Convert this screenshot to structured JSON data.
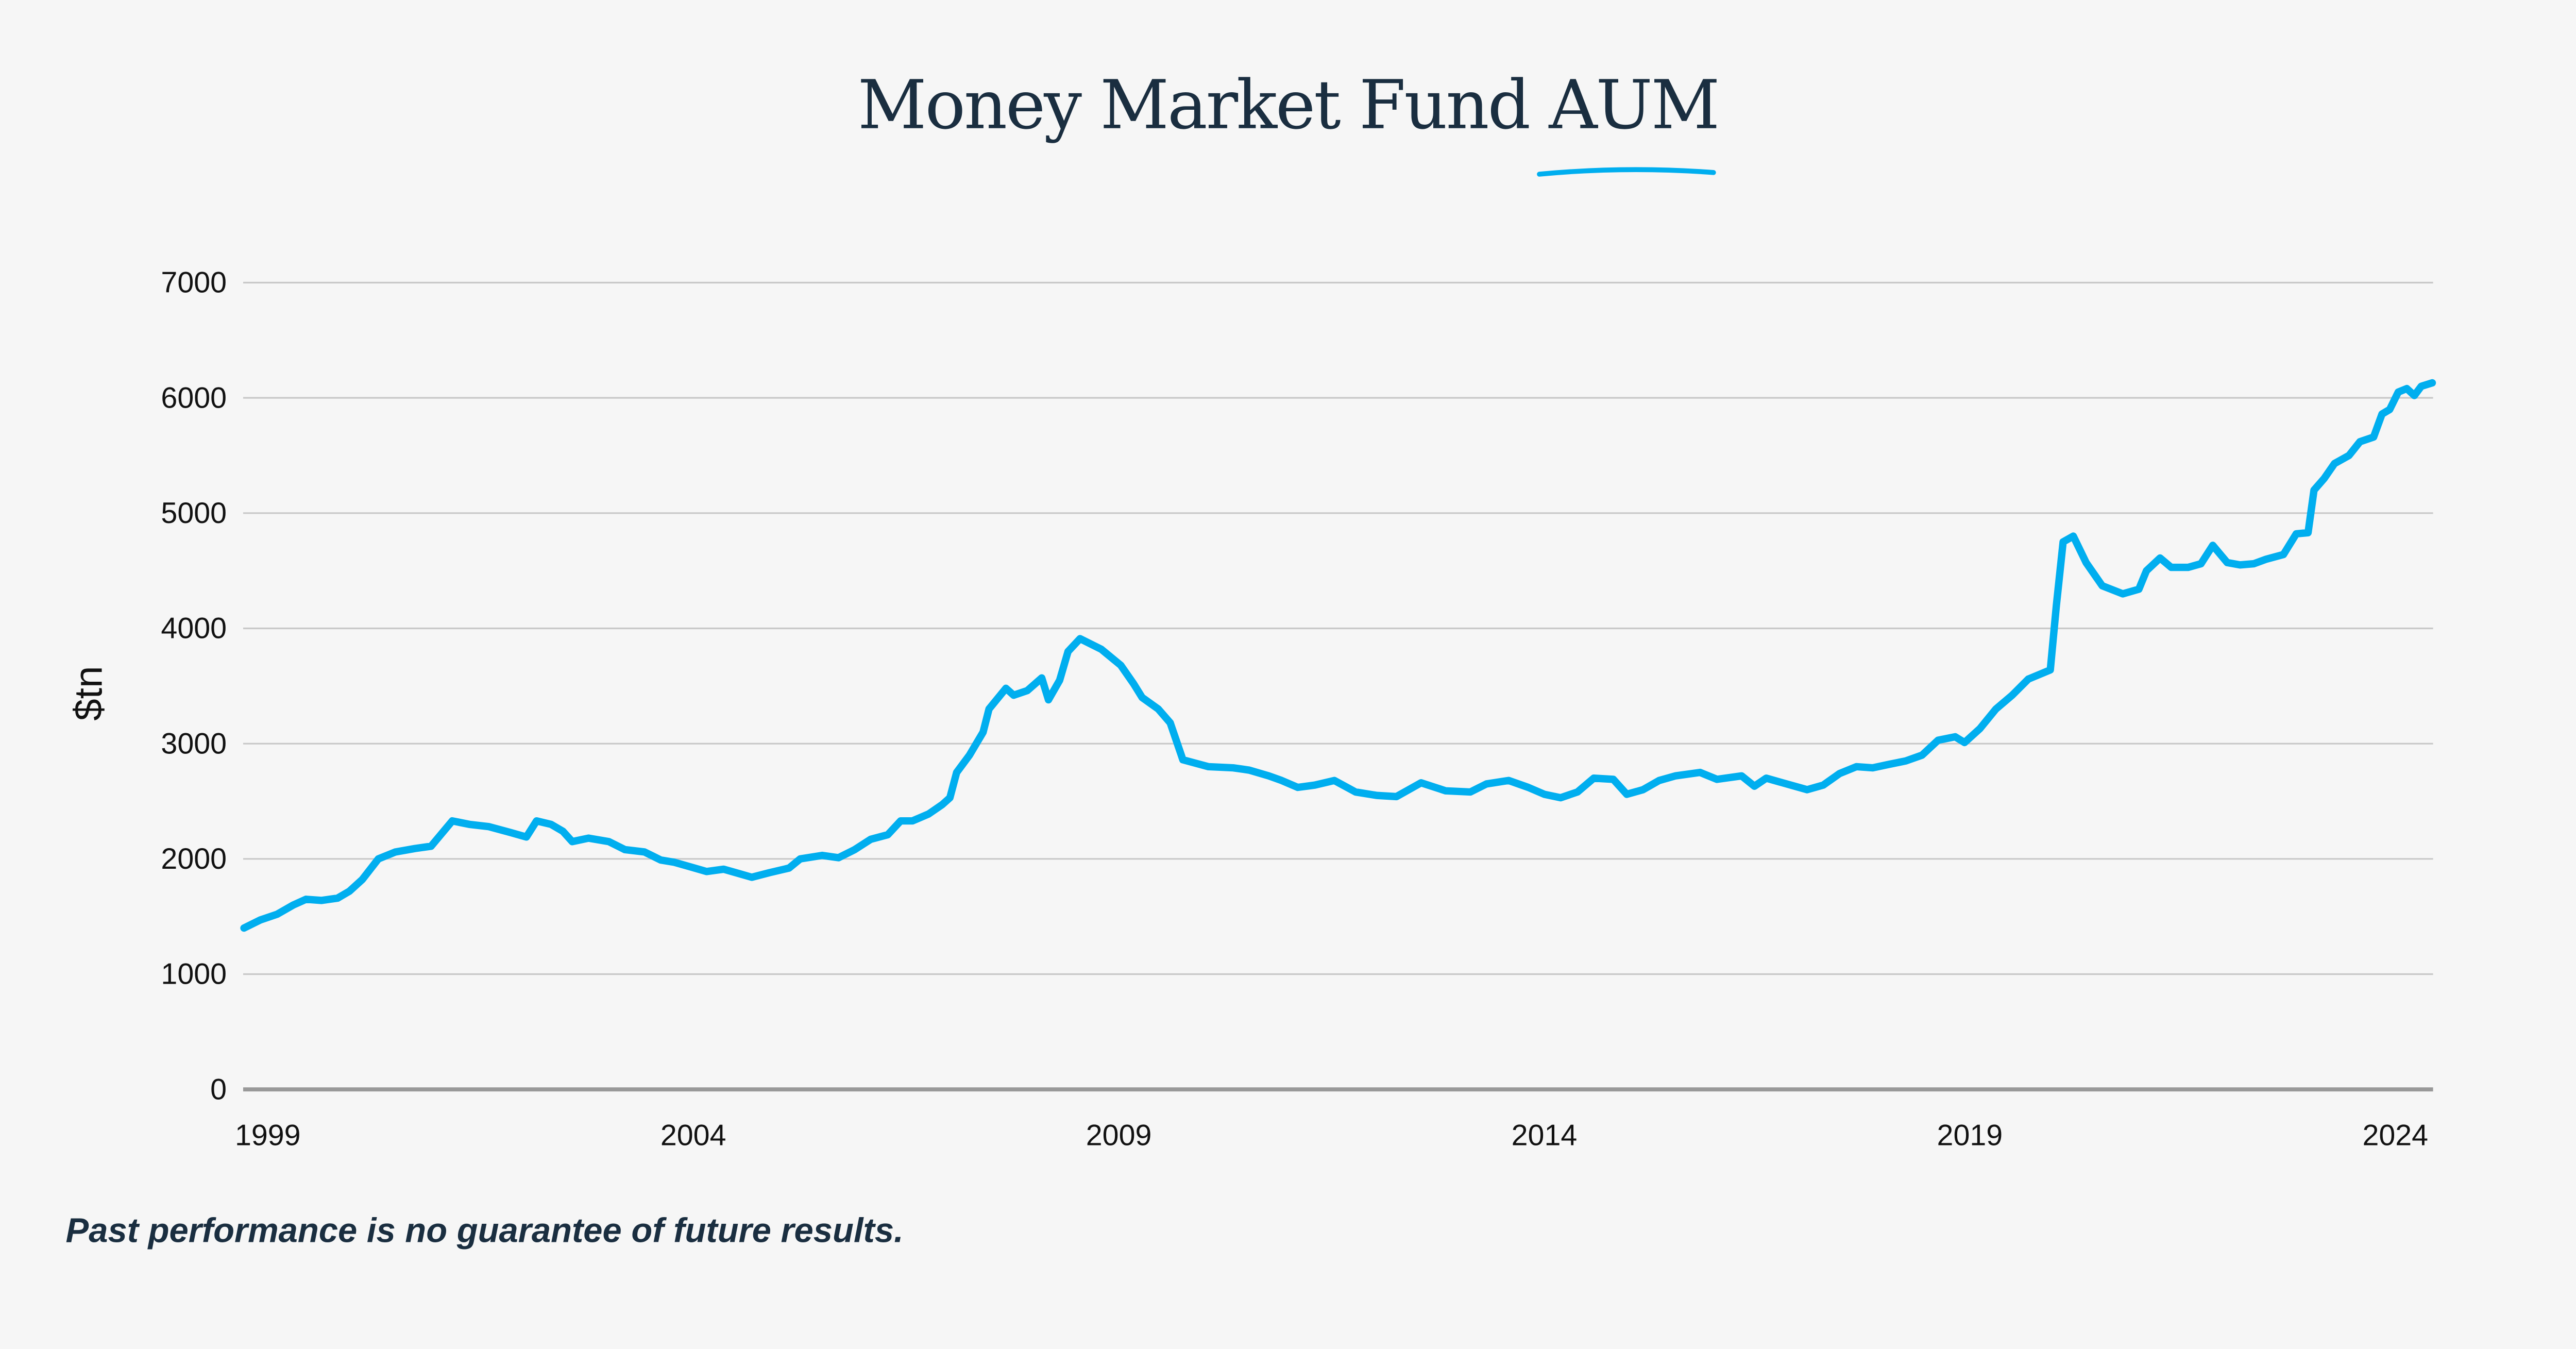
{
  "title": "Money Market Fund AUM",
  "footnote": "Past performance is no guarantee of future results.",
  "colors": {
    "line": "#00aeef",
    "title": "#1a2e40",
    "grid": "#c8c8c8",
    "axis": "#999999",
    "background": "#f6f6f6"
  },
  "chart_data": {
    "type": "line",
    "title": "Money Market Fund AUM",
    "xlabel": "",
    "ylabel": "$tn",
    "xlim": [
      1998.7,
      2024.45
    ],
    "ylim": [
      0,
      7000
    ],
    "yticks": [
      0,
      1000,
      2000,
      3000,
      4000,
      5000,
      6000,
      7000
    ],
    "xticks": [
      1999,
      2004,
      2009,
      2014,
      2019,
      2024
    ],
    "grid": "horizontal",
    "legend": "none",
    "series": [
      {
        "x": [
          1998.71,
          1998.9,
          1999.1,
          1999.29,
          1999.44,
          1999.62,
          1999.81,
          1999.95,
          2000.1,
          2000.29,
          2000.49,
          2000.72,
          2000.91,
          2001.16,
          2001.36,
          2001.59,
          2001.84,
          2002.03,
          2002.15,
          2002.32,
          2002.46,
          2002.57,
          2002.76,
          2003.0,
          2003.19,
          2003.42,
          2003.61,
          2003.77,
          2003.96,
          2004.15,
          2004.35,
          2004.54,
          2004.68,
          2004.89,
          2005.12,
          2005.25,
          2005.51,
          2005.7,
          2005.89,
          2006.08,
          2006.28,
          2006.43,
          2006.57,
          2006.76,
          2006.92,
          2007.01,
          2007.09,
          2007.24,
          2007.4,
          2007.47,
          2007.67,
          2007.76,
          2007.92,
          2008.09,
          2008.17,
          2008.3,
          2008.4,
          2008.54,
          2008.79,
          2009.02,
          2009.17,
          2009.27,
          2009.46,
          2009.6,
          2009.75,
          2010.05,
          2010.34,
          2010.53,
          2010.76,
          2010.91,
          2011.1,
          2011.3,
          2011.53,
          2011.78,
          2012.03,
          2012.26,
          2012.55,
          2012.84,
          2013.13,
          2013.32,
          2013.58,
          2013.81,
          2014.0,
          2014.19,
          2014.39,
          2014.58,
          2014.81,
          2014.97,
          2015.16,
          2015.35,
          2015.54,
          2015.83,
          2016.03,
          2016.32,
          2016.47,
          2016.61,
          2016.8,
          2017.09,
          2017.28,
          2017.47,
          2017.67,
          2017.86,
          2018.05,
          2018.25,
          2018.44,
          2018.63,
          2018.83,
          2018.94,
          2019.12,
          2019.31,
          2019.5,
          2019.69,
          2019.95,
          2020.02,
          2020.1,
          2020.22,
          2020.37,
          2020.56,
          2020.8,
          2020.99,
          2021.08,
          2021.24,
          2021.37,
          2021.57,
          2021.72,
          2021.86,
          2022.03,
          2022.18,
          2022.34,
          2022.49,
          2022.69,
          2022.84,
          2022.98,
          2023.05,
          2023.17,
          2023.29,
          2023.46,
          2023.59,
          2023.75,
          2023.85,
          2023.94,
          2024.04,
          2024.14,
          2024.23,
          2024.31,
          2024.44
        ],
        "y": [
          1400,
          1470,
          1520,
          1600,
          1650,
          1640,
          1660,
          1720,
          1820,
          2000,
          2060,
          2090,
          2110,
          2330,
          2300,
          2280,
          2230,
          2190,
          2330,
          2300,
          2240,
          2150,
          2180,
          2150,
          2080,
          2060,
          1990,
          1970,
          1930,
          1890,
          1910,
          1870,
          1840,
          1880,
          1920,
          2000,
          2030,
          2010,
          2080,
          2170,
          2210,
          2330,
          2330,
          2390,
          2470,
          2530,
          2750,
          2900,
          3100,
          3300,
          3480,
          3420,
          3460,
          3570,
          3380,
          3550,
          3800,
          3910,
          3820,
          3680,
          3520,
          3400,
          3300,
          3180,
          2860,
          2800,
          2790,
          2770,
          2720,
          2680,
          2620,
          2640,
          2680,
          2580,
          2550,
          2540,
          2660,
          2590,
          2580,
          2650,
          2680,
          2620,
          2560,
          2530,
          2580,
          2700,
          2690,
          2560,
          2600,
          2680,
          2720,
          2750,
          2690,
          2720,
          2630,
          2700,
          2660,
          2600,
          2640,
          2740,
          2800,
          2790,
          2820,
          2850,
          2900,
          3030,
          3060,
          3010,
          3130,
          3300,
          3420,
          3560,
          3640,
          4200,
          4750,
          4800,
          4570,
          4370,
          4300,
          4340,
          4500,
          4610,
          4530,
          4530,
          4560,
          4720,
          4570,
          4550,
          4560,
          4600,
          4640,
          4820,
          4830,
          5200,
          5300,
          5430,
          5500,
          5620,
          5660,
          5860,
          5900,
          6050,
          6080,
          6020,
          6100,
          6130
        ]
      }
    ]
  }
}
